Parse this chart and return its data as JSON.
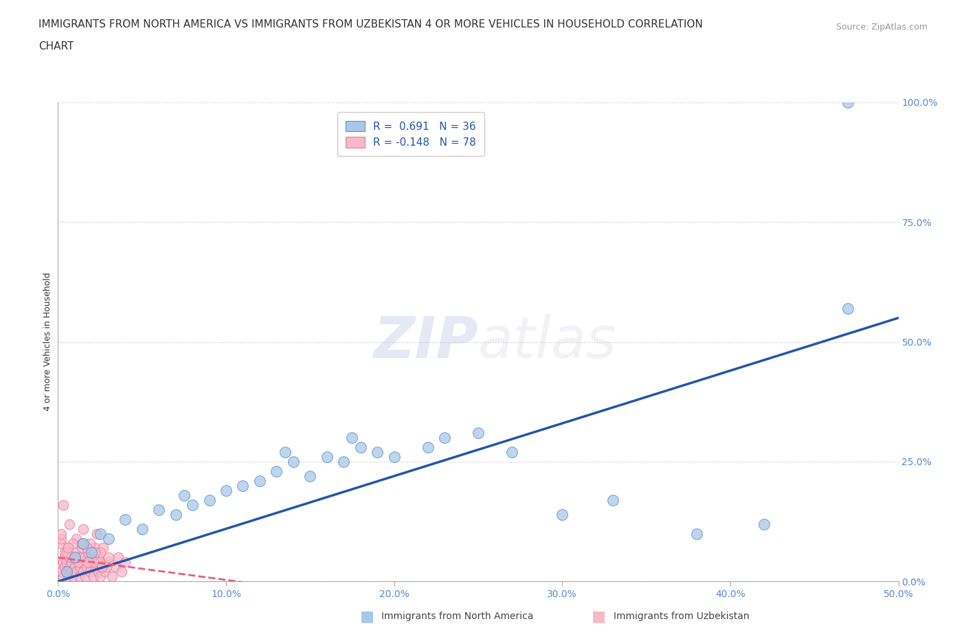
{
  "title_line1": "IMMIGRANTS FROM NORTH AMERICA VS IMMIGRANTS FROM UZBEKISTAN 4 OR MORE VEHICLES IN HOUSEHOLD CORRELATION",
  "title_line2": "CHART",
  "source": "Source: ZipAtlas.com",
  "r_blue": 0.691,
  "n_blue": 36,
  "r_pink": -0.148,
  "n_pink": 78,
  "blue_color": "#a8c8e8",
  "blue_edge_color": "#6090c8",
  "blue_line_color": "#2255aa",
  "pink_color": "#f8b8c8",
  "pink_edge_color": "#e080a0",
  "pink_line_color": "#e06080",
  "background_color": "#ffffff",
  "grid_color": "#c8c8d8",
  "xlim": [
    0.0,
    0.5
  ],
  "ylim": [
    0.0,
    1.0
  ],
  "xtick_vals": [
    0.0,
    0.1,
    0.2,
    0.3,
    0.4,
    0.5
  ],
  "ytick_vals": [
    0.0,
    0.25,
    0.5,
    0.75,
    1.0
  ],
  "tick_color": "#5588cc",
  "ylabel": "4 or more Vehicles in Household",
  "blue_scatter_x": [
    0.005,
    0.01,
    0.015,
    0.02,
    0.025,
    0.03,
    0.04,
    0.05,
    0.06,
    0.07,
    0.075,
    0.08,
    0.09,
    0.1,
    0.11,
    0.12,
    0.13,
    0.135,
    0.14,
    0.15,
    0.16,
    0.17,
    0.175,
    0.18,
    0.19,
    0.2,
    0.22,
    0.23,
    0.25,
    0.27,
    0.3,
    0.33,
    0.38,
    0.42,
    0.47,
    0.47
  ],
  "blue_scatter_y": [
    0.02,
    0.05,
    0.08,
    0.06,
    0.1,
    0.09,
    0.13,
    0.11,
    0.15,
    0.14,
    0.18,
    0.16,
    0.17,
    0.19,
    0.2,
    0.21,
    0.23,
    0.27,
    0.25,
    0.22,
    0.26,
    0.25,
    0.3,
    0.28,
    0.27,
    0.26,
    0.28,
    0.3,
    0.31,
    0.27,
    0.14,
    0.17,
    0.1,
    0.12,
    0.57,
    1.0
  ],
  "pink_scatter_x": [
    0.001,
    0.002,
    0.003,
    0.003,
    0.004,
    0.004,
    0.005,
    0.005,
    0.006,
    0.006,
    0.007,
    0.007,
    0.008,
    0.008,
    0.009,
    0.01,
    0.01,
    0.011,
    0.012,
    0.013,
    0.013,
    0.014,
    0.015,
    0.015,
    0.016,
    0.017,
    0.018,
    0.019,
    0.02,
    0.021,
    0.022,
    0.023,
    0.024,
    0.025,
    0.025,
    0.026,
    0.028,
    0.03,
    0.032,
    0.034,
    0.036,
    0.038,
    0.04,
    0.002,
    0.004,
    0.006,
    0.008,
    0.01,
    0.012,
    0.014,
    0.016,
    0.018,
    0.02,
    0.022,
    0.024,
    0.003,
    0.007,
    0.011,
    0.015,
    0.019,
    0.023,
    0.027,
    0.002,
    0.005,
    0.009,
    0.013,
    0.017,
    0.021,
    0.025,
    0.029,
    0.002,
    0.006,
    0.01,
    0.014,
    0.018,
    0.022,
    0.026,
    0.03
  ],
  "pink_scatter_y": [
    0.03,
    0.02,
    0.04,
    0.01,
    0.03,
    0.05,
    0.02,
    0.04,
    0.01,
    0.06,
    0.03,
    0.05,
    0.02,
    0.04,
    0.01,
    0.03,
    0.05,
    0.02,
    0.04,
    0.01,
    0.03,
    0.05,
    0.02,
    0.04,
    0.01,
    0.03,
    0.05,
    0.02,
    0.04,
    0.01,
    0.03,
    0.05,
    0.02,
    0.04,
    0.01,
    0.03,
    0.02,
    0.04,
    0.01,
    0.03,
    0.05,
    0.02,
    0.04,
    0.08,
    0.06,
    0.07,
    0.05,
    0.06,
    0.04,
    0.07,
    0.05,
    0.06,
    0.04,
    0.07,
    0.05,
    0.16,
    0.12,
    0.09,
    0.11,
    0.08,
    0.1,
    0.07,
    0.09,
    0.06,
    0.08,
    0.05,
    0.07,
    0.04,
    0.06,
    0.03,
    0.1,
    0.07,
    0.05,
    0.08,
    0.04,
    0.06,
    0.03,
    0.05
  ],
  "title_fontsize": 11,
  "axis_label_fontsize": 9,
  "tick_fontsize": 10,
  "legend_fontsize": 11,
  "blue_trend_x0": 0.0,
  "blue_trend_y0": 0.0,
  "blue_trend_x1": 0.5,
  "blue_trend_y1": 0.55,
  "pink_trend_x0": 0.0,
  "pink_trend_y0": 0.05,
  "pink_trend_x1": 0.15,
  "pink_trend_y1": -0.02
}
